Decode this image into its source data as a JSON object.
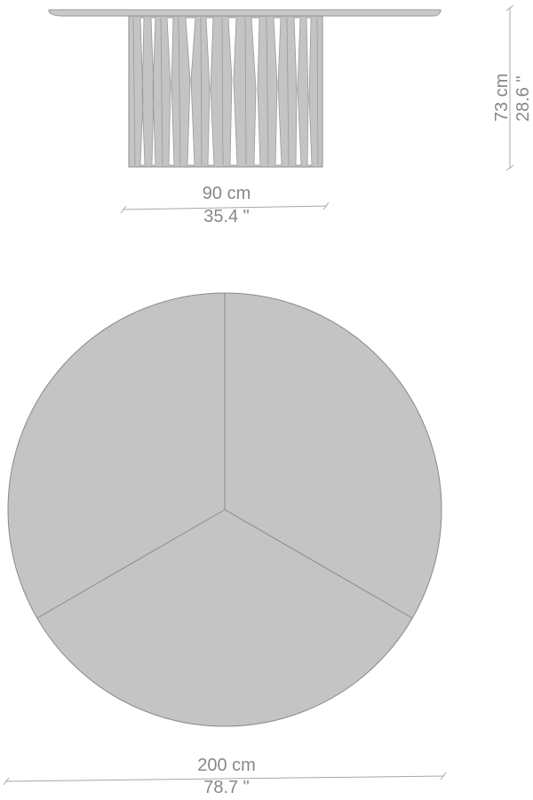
{
  "side_view": {
    "width_cm": "90 cm",
    "width_in": "35.4 \""
  },
  "height": {
    "cm": "73 cm",
    "in": "28.6 \""
  },
  "top_view": {
    "diameter_cm": "200 cm",
    "diameter_in": "78.7 \""
  },
  "colors": {
    "fill": "#c4c4c4",
    "stroke": "#8c8c8c",
    "dimension_text": "#888888"
  }
}
